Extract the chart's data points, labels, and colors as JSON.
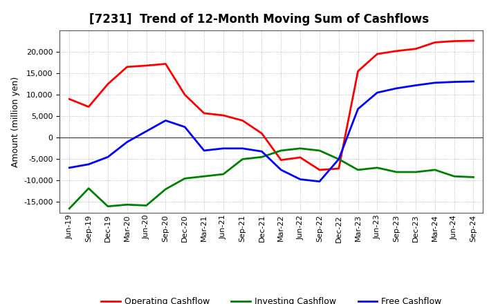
{
  "title": "[7231]  Trend of 12-Month Moving Sum of Cashflows",
  "ylabel": "Amount (million yen)",
  "xlabels": [
    "Jun-19",
    "Sep-19",
    "Dec-19",
    "Mar-20",
    "Jun-20",
    "Sep-20",
    "Dec-20",
    "Mar-21",
    "Jun-21",
    "Sep-21",
    "Dec-21",
    "Mar-22",
    "Jun-22",
    "Sep-22",
    "Dec-22",
    "Mar-23",
    "Jun-23",
    "Sep-23",
    "Dec-23",
    "Mar-24",
    "Jun-24",
    "Sep-24"
  ],
  "operating": [
    9000,
    7200,
    12500,
    16500,
    16800,
    17200,
    10000,
    5700,
    5200,
    4000,
    1000,
    -5200,
    -4600,
    -7500,
    -7200,
    15500,
    19500,
    20200,
    20700,
    22200,
    22500,
    22600
  ],
  "investing": [
    -16500,
    -11800,
    -16000,
    -15600,
    -15800,
    -12000,
    -9500,
    -9000,
    -8500,
    -5000,
    -4500,
    -3000,
    -2500,
    -3000,
    -5000,
    -7500,
    -7000,
    -8000,
    -8000,
    -7500,
    -9000,
    -9200
  ],
  "free": [
    -7000,
    -6200,
    -4500,
    -1000,
    1500,
    4000,
    2500,
    -3000,
    -2500,
    -2500,
    -3200,
    -7500,
    -9700,
    -10200,
    -5000,
    6700,
    10500,
    11500,
    12200,
    12800,
    13000,
    13100
  ],
  "operating_color": "#ff0000",
  "investing_color": "#008000",
  "free_color": "#0000ff",
  "ylim": [
    -17500,
    25000
  ],
  "yticks": [
    -15000,
    -10000,
    -5000,
    0,
    5000,
    10000,
    15000,
    20000
  ],
  "background_color": "#ffffff",
  "grid_color": "#aaaaaa",
  "linewidth": 2.0,
  "title_fontsize": 12,
  "ylabel_fontsize": 9,
  "tick_fontsize": 8,
  "legend_fontsize": 9
}
